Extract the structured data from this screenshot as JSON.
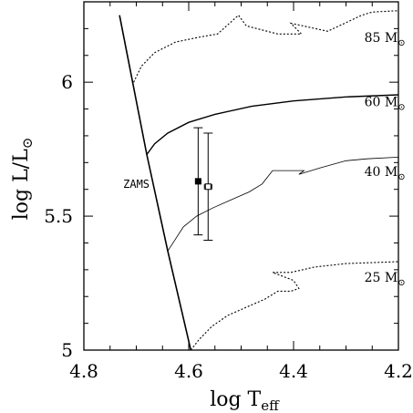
{
  "chart_data": {
    "type": "line",
    "title": "",
    "xlabel": {
      "main": "log T",
      "sub": "eff"
    },
    "ylabel": {
      "main": "log L/L",
      "sym": "⊙"
    },
    "x_reversed": true,
    "xlim": [
      4.8,
      4.2
    ],
    "ylim": [
      5.0,
      6.3
    ],
    "x_ticks": [
      4.8,
      4.6,
      4.4,
      4.2
    ],
    "x_tick_labels": [
      "4.8",
      "4.6",
      "4.4",
      "4.2"
    ],
    "y_ticks": [
      5.0,
      5.5,
      6.0
    ],
    "y_tick_labels": [
      "5",
      "5.5",
      "6"
    ],
    "grid": false,
    "zams": {
      "label": "ZAMS",
      "points": [
        [
          4.732,
          6.25
        ],
        [
          4.68,
          5.73
        ],
        [
          4.64,
          5.37
        ],
        [
          4.596,
          5.0
        ]
      ]
    },
    "series": [
      {
        "label": "85 M",
        "style": "dotted",
        "points": [
          [
            4.705,
            6.0
          ],
          [
            4.69,
            6.06
          ],
          [
            4.665,
            6.11
          ],
          [
            4.625,
            6.15
          ],
          [
            4.575,
            6.17
          ],
          [
            4.545,
            6.18
          ],
          [
            4.505,
            6.25
          ],
          [
            4.49,
            6.21
          ],
          [
            4.43,
            6.18
          ],
          [
            4.385,
            6.18
          ],
          [
            4.405,
            6.22
          ],
          [
            4.335,
            6.19
          ],
          [
            4.27,
            6.25
          ],
          [
            4.25,
            6.262
          ],
          [
            4.2,
            6.267
          ]
        ]
      },
      {
        "label": "60 M",
        "style": "solid",
        "points": [
          [
            4.68,
            5.73
          ],
          [
            4.665,
            5.77
          ],
          [
            4.64,
            5.81
          ],
          [
            4.6,
            5.85
          ],
          [
            4.55,
            5.88
          ],
          [
            4.48,
            5.91
          ],
          [
            4.4,
            5.93
          ],
          [
            4.3,
            5.945
          ],
          [
            4.2,
            5.953
          ]
        ]
      },
      {
        "label": "40 M",
        "style": "thin",
        "points": [
          [
            4.64,
            5.37
          ],
          [
            4.61,
            5.46
          ],
          [
            4.585,
            5.5
          ],
          [
            4.555,
            5.53
          ],
          [
            4.52,
            5.56
          ],
          [
            4.485,
            5.59
          ],
          [
            4.46,
            5.62
          ],
          [
            4.44,
            5.67
          ],
          [
            4.38,
            5.67
          ],
          [
            4.39,
            5.656
          ],
          [
            4.35,
            5.68
          ],
          [
            4.3,
            5.707
          ],
          [
            4.26,
            5.714
          ],
          [
            4.2,
            5.72
          ]
        ]
      },
      {
        "label": "25 M",
        "style": "dotted",
        "points": [
          [
            4.596,
            5.0
          ],
          [
            4.58,
            5.04
          ],
          [
            4.555,
            5.09
          ],
          [
            4.525,
            5.13
          ],
          [
            4.49,
            5.16
          ],
          [
            4.455,
            5.19
          ],
          [
            4.43,
            5.22
          ],
          [
            4.405,
            5.22
          ],
          [
            4.39,
            5.23
          ],
          [
            4.4,
            5.26
          ],
          [
            4.44,
            5.29
          ],
          [
            4.405,
            5.29
          ],
          [
            4.36,
            5.31
          ],
          [
            4.3,
            5.323
          ],
          [
            4.2,
            5.33
          ]
        ]
      }
    ],
    "mass_labels": [
      {
        "text": "85 M",
        "sym": "⊙",
        "x": 4.265,
        "y": 6.15
      },
      {
        "text": "60 M",
        "sym": "⊙",
        "x": 4.265,
        "y": 5.91
      },
      {
        "text": "40 M",
        "sym": "⊙",
        "x": 4.265,
        "y": 5.65
      },
      {
        "text": "25 M",
        "sym": "⊙",
        "x": 4.265,
        "y": 5.255
      }
    ],
    "zams_label_pos": {
      "x": 4.725,
      "y": 5.605
    },
    "data_points": [
      {
        "x": 4.582,
        "y": 5.63,
        "yerr_low": 5.43,
        "yerr_high": 5.83,
        "xerr": 0.005,
        "marker": "filled-square"
      },
      {
        "x": 4.563,
        "y": 5.61,
        "yerr_low": 5.41,
        "yerr_high": 5.81,
        "xerr": 0.007,
        "marker": "open-square"
      }
    ]
  }
}
